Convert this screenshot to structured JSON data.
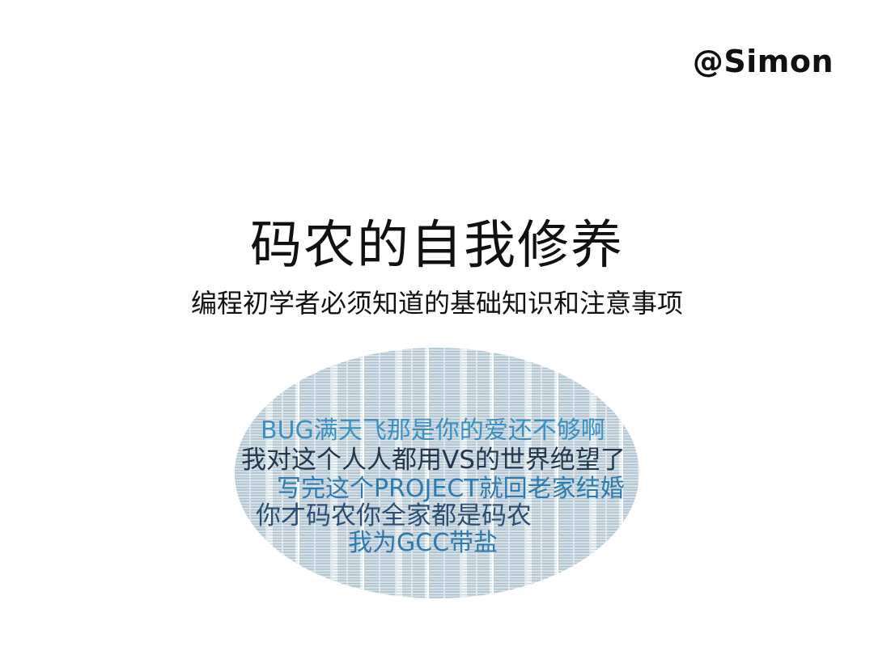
{
  "slide": {
    "author": "@Simon",
    "title": "码农的自我修养",
    "subtitle": "编程初学者必须知道的基础知识和注意事项"
  },
  "word_cloud": {
    "lines": [
      "BUG满天飞那是你的爱还不够啊",
      "我对这个人人都用VS的世界绝望了",
      "写完这个PROJECT就回老家结婚",
      "你才码农你全家都是码农",
      "我为GCC带盐"
    ]
  },
  "colors": {
    "cloud_blue_light": "#3b90c2",
    "cloud_navy": "#23384f",
    "cloud_blue": "#2e7bb0"
  }
}
